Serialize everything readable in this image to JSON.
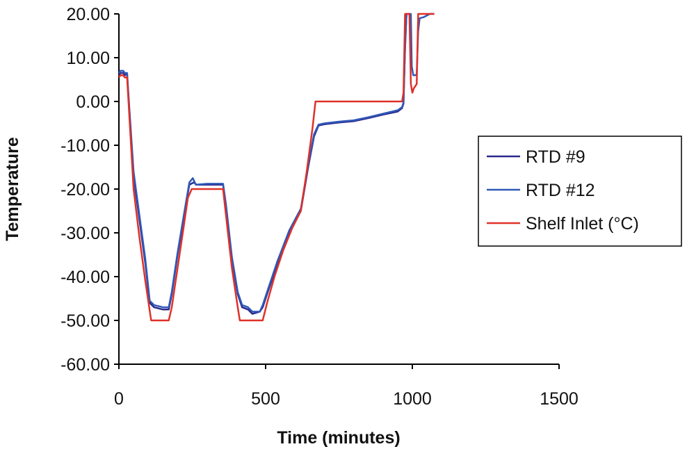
{
  "chart_data": {
    "type": "line",
    "title": "",
    "xlabel": "Time (minutes)",
    "ylabel": "Temperature",
    "xlim": [
      0,
      1500
    ],
    "ylim": [
      -60,
      20
    ],
    "x_ticks": [
      0,
      500,
      1000,
      1500
    ],
    "x_tick_labels": [
      "0",
      "500",
      "1000",
      "1500"
    ],
    "y_ticks": [
      20,
      10,
      0,
      -10,
      -20,
      -30,
      -40,
      -50,
      -60
    ],
    "y_tick_labels": [
      "20.00",
      "10.00",
      "0.00",
      "-10.00",
      "-20.00",
      "-30.00",
      "-40.00",
      "-50.00",
      "-60.00"
    ],
    "grid": false,
    "legend_position": "right",
    "series": [
      {
        "name": "RTD #9",
        "color": "#2a2a8c",
        "points": [
          [
            0,
            6
          ],
          [
            5,
            6.5
          ],
          [
            15,
            6.5
          ],
          [
            20,
            6
          ],
          [
            25,
            6.2
          ],
          [
            28,
            6.2
          ],
          [
            35,
            -2
          ],
          [
            50,
            -17
          ],
          [
            70,
            -27
          ],
          [
            90,
            -37
          ],
          [
            105,
            -46
          ],
          [
            120,
            -47
          ],
          [
            150,
            -47.5
          ],
          [
            170,
            -47.5
          ],
          [
            180,
            -44
          ],
          [
            200,
            -35
          ],
          [
            220,
            -27
          ],
          [
            240,
            -19
          ],
          [
            255,
            -18.5
          ],
          [
            265,
            -19
          ],
          [
            300,
            -19
          ],
          [
            340,
            -19
          ],
          [
            355,
            -19
          ],
          [
            365,
            -24
          ],
          [
            385,
            -36
          ],
          [
            405,
            -44
          ],
          [
            420,
            -47
          ],
          [
            440,
            -47.5
          ],
          [
            455,
            -48.5
          ],
          [
            465,
            -48.3
          ],
          [
            480,
            -48
          ],
          [
            490,
            -47
          ],
          [
            510,
            -43
          ],
          [
            540,
            -37
          ],
          [
            580,
            -30
          ],
          [
            620,
            -25
          ],
          [
            645,
            -15
          ],
          [
            665,
            -8
          ],
          [
            680,
            -5.5
          ],
          [
            700,
            -5.2
          ],
          [
            750,
            -4.8
          ],
          [
            800,
            -4.5
          ],
          [
            850,
            -3.8
          ],
          [
            900,
            -3
          ],
          [
            950,
            -2.3
          ],
          [
            965,
            -1.5
          ],
          [
            970,
            -0.5
          ],
          [
            975,
            12
          ],
          [
            980,
            20
          ]
        ]
      },
      {
        "name": "RTD #12",
        "color": "#3058b8",
        "points": [
          [
            0,
            6.5
          ],
          [
            5,
            7
          ],
          [
            15,
            7
          ],
          [
            20,
            6.5
          ],
          [
            28,
            6.5
          ],
          [
            35,
            -1
          ],
          [
            50,
            -16
          ],
          [
            70,
            -26
          ],
          [
            90,
            -36
          ],
          [
            105,
            -45.5
          ],
          [
            120,
            -46.5
          ],
          [
            150,
            -47
          ],
          [
            170,
            -47
          ],
          [
            180,
            -43.5
          ],
          [
            200,
            -34.5
          ],
          [
            220,
            -26.5
          ],
          [
            240,
            -18.5
          ],
          [
            252,
            -17.5
          ],
          [
            262,
            -19
          ],
          [
            300,
            -18.8
          ],
          [
            340,
            -18.8
          ],
          [
            355,
            -18.8
          ],
          [
            365,
            -23.5
          ],
          [
            385,
            -35.5
          ],
          [
            405,
            -43.5
          ],
          [
            420,
            -46.5
          ],
          [
            440,
            -47
          ],
          [
            455,
            -48
          ],
          [
            465,
            -48
          ],
          [
            480,
            -48
          ],
          [
            490,
            -46.5
          ],
          [
            510,
            -42.5
          ],
          [
            540,
            -36.5
          ],
          [
            580,
            -29.5
          ],
          [
            620,
            -24.5
          ],
          [
            645,
            -14.5
          ],
          [
            665,
            -7.5
          ],
          [
            680,
            -5.3
          ],
          [
            700,
            -5
          ],
          [
            750,
            -4.6
          ],
          [
            800,
            -4.3
          ],
          [
            850,
            -3.6
          ],
          [
            900,
            -2.8
          ],
          [
            950,
            -2
          ],
          [
            965,
            -1.3
          ],
          [
            970,
            -0.2
          ],
          [
            975,
            12.5
          ],
          [
            980,
            20
          ],
          [
            995,
            20
          ],
          [
            998,
            8
          ],
          [
            1003,
            6
          ],
          [
            1010,
            6
          ],
          [
            1015,
            6.2
          ],
          [
            1020,
            16
          ],
          [
            1025,
            19
          ],
          [
            1040,
            19.3
          ],
          [
            1060,
            20
          ],
          [
            1075,
            20
          ]
        ]
      },
      {
        "name": "Shelf Inlet (°C)",
        "color": "#e03028",
        "points": [
          [
            0,
            5.5
          ],
          [
            5,
            6
          ],
          [
            15,
            6
          ],
          [
            20,
            5.5
          ],
          [
            28,
            5.5
          ],
          [
            50,
            -20
          ],
          [
            70,
            -31
          ],
          [
            90,
            -41
          ],
          [
            110,
            -50
          ],
          [
            120,
            -50
          ],
          [
            150,
            -50
          ],
          [
            170,
            -50
          ],
          [
            180,
            -47
          ],
          [
            200,
            -38
          ],
          [
            220,
            -29
          ],
          [
            235,
            -22
          ],
          [
            248,
            -20
          ],
          [
            265,
            -20
          ],
          [
            300,
            -20
          ],
          [
            340,
            -20
          ],
          [
            355,
            -20
          ],
          [
            365,
            -26
          ],
          [
            385,
            -38
          ],
          [
            405,
            -47
          ],
          [
            412,
            -50
          ],
          [
            450,
            -50
          ],
          [
            490,
            -50
          ],
          [
            505,
            -46
          ],
          [
            530,
            -40
          ],
          [
            560,
            -34
          ],
          [
            590,
            -29
          ],
          [
            620,
            -25
          ],
          [
            640,
            -16
          ],
          [
            660,
            -6
          ],
          [
            670,
            0
          ],
          [
            700,
            0
          ],
          [
            750,
            0
          ],
          [
            800,
            0
          ],
          [
            850,
            0
          ],
          [
            900,
            0
          ],
          [
            950,
            0
          ],
          [
            965,
            0
          ],
          [
            970,
            2
          ],
          [
            975,
            20
          ],
          [
            990,
            20
          ],
          [
            995,
            4
          ],
          [
            1000,
            2
          ],
          [
            1005,
            3
          ],
          [
            1010,
            3.5
          ],
          [
            1015,
            4
          ],
          [
            1020,
            20
          ],
          [
            1040,
            20.2
          ],
          [
            1075,
            20.2
          ]
        ]
      }
    ]
  }
}
